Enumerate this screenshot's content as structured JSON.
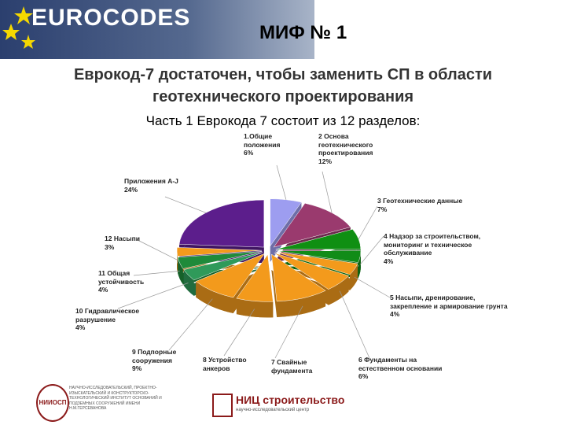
{
  "header": {
    "brand": "EUROCODES",
    "title": "МИФ № 1"
  },
  "heading": [
    "Еврокод-7 достаточен, чтобы заменить СП в области",
    "геотехнического проектирования"
  ],
  "chart_data": {
    "type": "pie",
    "title": "Часть 1 Еврокода 7 состоит из 12 разделов:",
    "categories": [
      "1.Общие положения",
      "2 Основа геотехнического проектирования",
      "3 Геотехнические данные",
      "4 Надзор за строительством, мониторинг и техническое обслуживание",
      "5 Насыпи, дренирование, закрепление и армирование грунта",
      "6 Фундаменты на естественном основании",
      "7 Свайные фундамента",
      "8 Устройство анкеров",
      "9 Подпорные сооружения",
      "10 Гидравлическое разрушение",
      "11 Общая устойчивость",
      "12 Насыпи",
      "Приложения A-J"
    ],
    "values": [
      6,
      12,
      7,
      4,
      4,
      6,
      10,
      7,
      9,
      4,
      4,
      3,
      24
    ],
    "value_labels": [
      "6%",
      "12%",
      "7%",
      "4%",
      "4%",
      "6%",
      null,
      null,
      "9%",
      "4%",
      "4%",
      "3%",
      "24%"
    ],
    "colors": [
      "#9d9df0",
      "#9a3a6e",
      "#0f8f12",
      "#118c18",
      "#f39a1c",
      "#f39a1c",
      "#f39a1c",
      "#f39a1c",
      "#f39a1c",
      "#2f9a5a",
      "#1f8a3a",
      "#f39a1c",
      "#5c1e8c"
    ]
  },
  "footer": {
    "left_logo": "НИИОСП",
    "left_text": "НАУЧНО-ИССЛЕДОВАТЕЛЬСКИЙ, ПРОЕКТНО-ИЗЫСКАТЕЛЬСКИЙ И КОНСТРУКТОРСКО-ТЕХНОЛОГИЧЕСКИЙ ИНСТИТУТ ОСНОВАНИЙ И ПОДЗЕМНЫХ СООРУЖЕНИЙ ИМЕНИ Н.М.ГЕРСЕВАНОВА",
    "right_logo": "НИЦ строительство",
    "right_text": "научно-исследовательский центр"
  }
}
